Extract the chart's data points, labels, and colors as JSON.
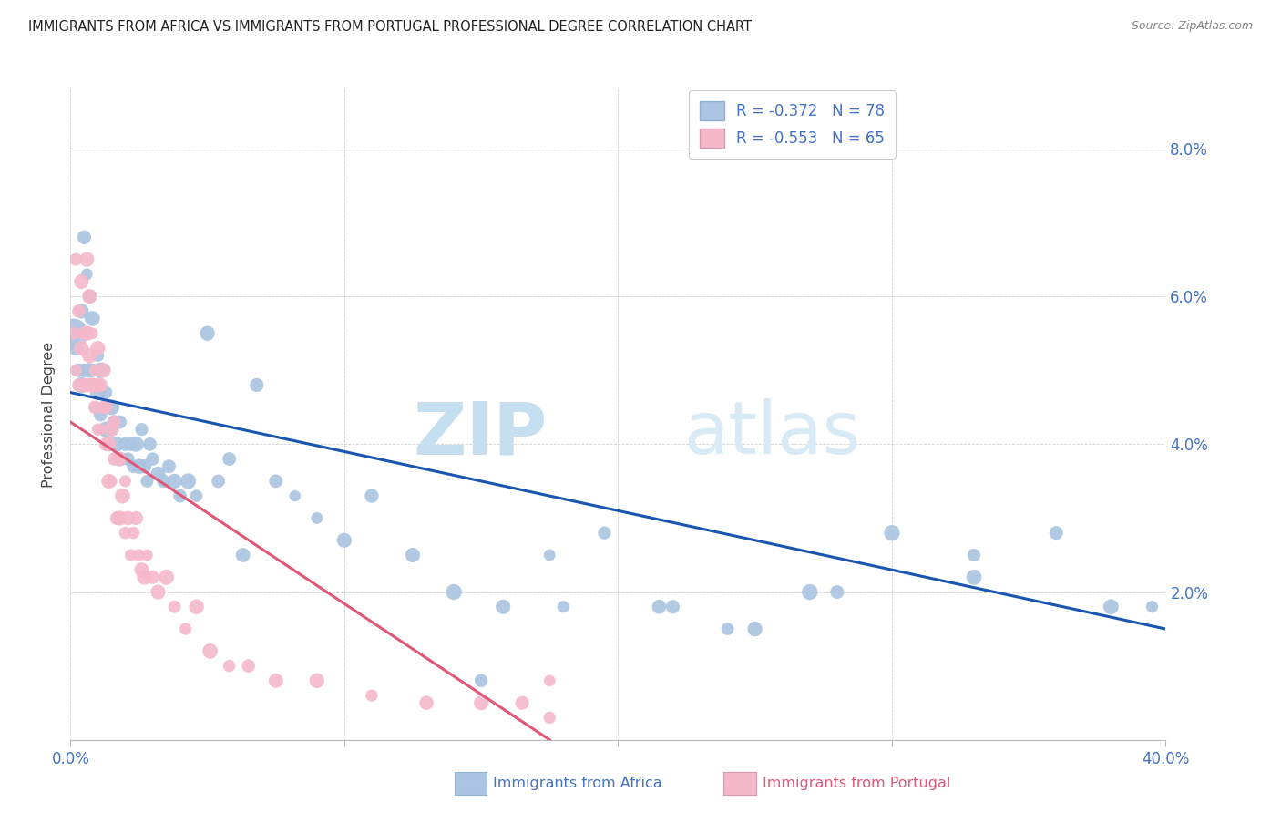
{
  "title": "IMMIGRANTS FROM AFRICA VS IMMIGRANTS FROM PORTUGAL PROFESSIONAL DEGREE CORRELATION CHART",
  "source": "Source: ZipAtlas.com",
  "ylabel": "Professional Degree",
  "xlim": [
    0.0,
    0.4
  ],
  "ylim": [
    0.0,
    0.088
  ],
  "africa_R": -0.372,
  "africa_N": 78,
  "portugal_R": -0.553,
  "portugal_N": 65,
  "africa_color": "#aac4e2",
  "portugal_color": "#f5b8ca",
  "africa_line_color": "#1a56b0",
  "portugal_line_color": "#e05878",
  "legend_label_africa": "Immigrants from Africa",
  "legend_label_portugal": "Immigrants from Portugal",
  "watermark_zip": "ZIP",
  "watermark_atlas": "atlas",
  "background_color": "#ffffff",
  "africa_line_x0": 0.0,
  "africa_line_y0": 0.047,
  "africa_line_x1": 0.4,
  "africa_line_y1": 0.015,
  "portugal_line_x0": 0.0,
  "portugal_line_y0": 0.043,
  "portugal_line_x1": 0.175,
  "portugal_line_y1": 0.0,
  "africa_scatter_x": [
    0.001,
    0.002,
    0.003,
    0.004,
    0.004,
    0.005,
    0.005,
    0.006,
    0.006,
    0.007,
    0.007,
    0.008,
    0.008,
    0.009,
    0.009,
    0.01,
    0.01,
    0.011,
    0.011,
    0.012,
    0.012,
    0.013,
    0.013,
    0.014,
    0.015,
    0.015,
    0.016,
    0.017,
    0.018,
    0.018,
    0.019,
    0.02,
    0.021,
    0.022,
    0.023,
    0.024,
    0.025,
    0.026,
    0.027,
    0.028,
    0.029,
    0.03,
    0.032,
    0.034,
    0.036,
    0.038,
    0.04,
    0.043,
    0.046,
    0.05,
    0.054,
    0.058,
    0.063,
    0.068,
    0.075,
    0.082,
    0.09,
    0.1,
    0.11,
    0.125,
    0.14,
    0.158,
    0.175,
    0.195,
    0.215,
    0.24,
    0.27,
    0.3,
    0.33,
    0.36,
    0.38,
    0.395,
    0.33,
    0.28,
    0.25,
    0.22,
    0.18,
    0.15
  ],
  "africa_scatter_y": [
    0.055,
    0.053,
    0.05,
    0.058,
    0.048,
    0.068,
    0.05,
    0.063,
    0.055,
    0.06,
    0.05,
    0.057,
    0.05,
    0.045,
    0.048,
    0.047,
    0.052,
    0.044,
    0.05,
    0.042,
    0.05,
    0.042,
    0.047,
    0.04,
    0.045,
    0.042,
    0.043,
    0.04,
    0.038,
    0.043,
    0.038,
    0.04,
    0.038,
    0.04,
    0.037,
    0.04,
    0.037,
    0.042,
    0.037,
    0.035,
    0.04,
    0.038,
    0.036,
    0.035,
    0.037,
    0.035,
    0.033,
    0.035,
    0.033,
    0.055,
    0.035,
    0.038,
    0.025,
    0.048,
    0.035,
    0.033,
    0.03,
    0.027,
    0.033,
    0.025,
    0.02,
    0.018,
    0.025,
    0.028,
    0.018,
    0.015,
    0.02,
    0.028,
    0.022,
    0.028,
    0.018,
    0.018,
    0.025,
    0.02,
    0.015,
    0.018,
    0.018,
    0.008
  ],
  "portugal_scatter_x": [
    0.001,
    0.002,
    0.002,
    0.003,
    0.003,
    0.004,
    0.004,
    0.005,
    0.005,
    0.006,
    0.006,
    0.006,
    0.007,
    0.007,
    0.008,
    0.008,
    0.009,
    0.009,
    0.01,
    0.01,
    0.01,
    0.011,
    0.011,
    0.012,
    0.012,
    0.013,
    0.013,
    0.014,
    0.014,
    0.015,
    0.015,
    0.016,
    0.016,
    0.017,
    0.017,
    0.018,
    0.018,
    0.019,
    0.02,
    0.02,
    0.021,
    0.022,
    0.023,
    0.024,
    0.025,
    0.026,
    0.027,
    0.028,
    0.03,
    0.032,
    0.035,
    0.038,
    0.042,
    0.046,
    0.051,
    0.058,
    0.065,
    0.075,
    0.09,
    0.11,
    0.13,
    0.15,
    0.165,
    0.175,
    0.175
  ],
  "portugal_scatter_y": [
    0.055,
    0.065,
    0.05,
    0.058,
    0.048,
    0.062,
    0.053,
    0.055,
    0.048,
    0.065,
    0.055,
    0.048,
    0.06,
    0.052,
    0.055,
    0.048,
    0.05,
    0.045,
    0.053,
    0.048,
    0.042,
    0.048,
    0.042,
    0.045,
    0.05,
    0.045,
    0.04,
    0.04,
    0.035,
    0.042,
    0.035,
    0.038,
    0.043,
    0.038,
    0.03,
    0.038,
    0.03,
    0.033,
    0.035,
    0.028,
    0.03,
    0.025,
    0.028,
    0.03,
    0.025,
    0.023,
    0.022,
    0.025,
    0.022,
    0.02,
    0.022,
    0.018,
    0.015,
    0.018,
    0.012,
    0.01,
    0.01,
    0.008,
    0.008,
    0.006,
    0.005,
    0.005,
    0.005,
    0.003,
    0.008
  ]
}
